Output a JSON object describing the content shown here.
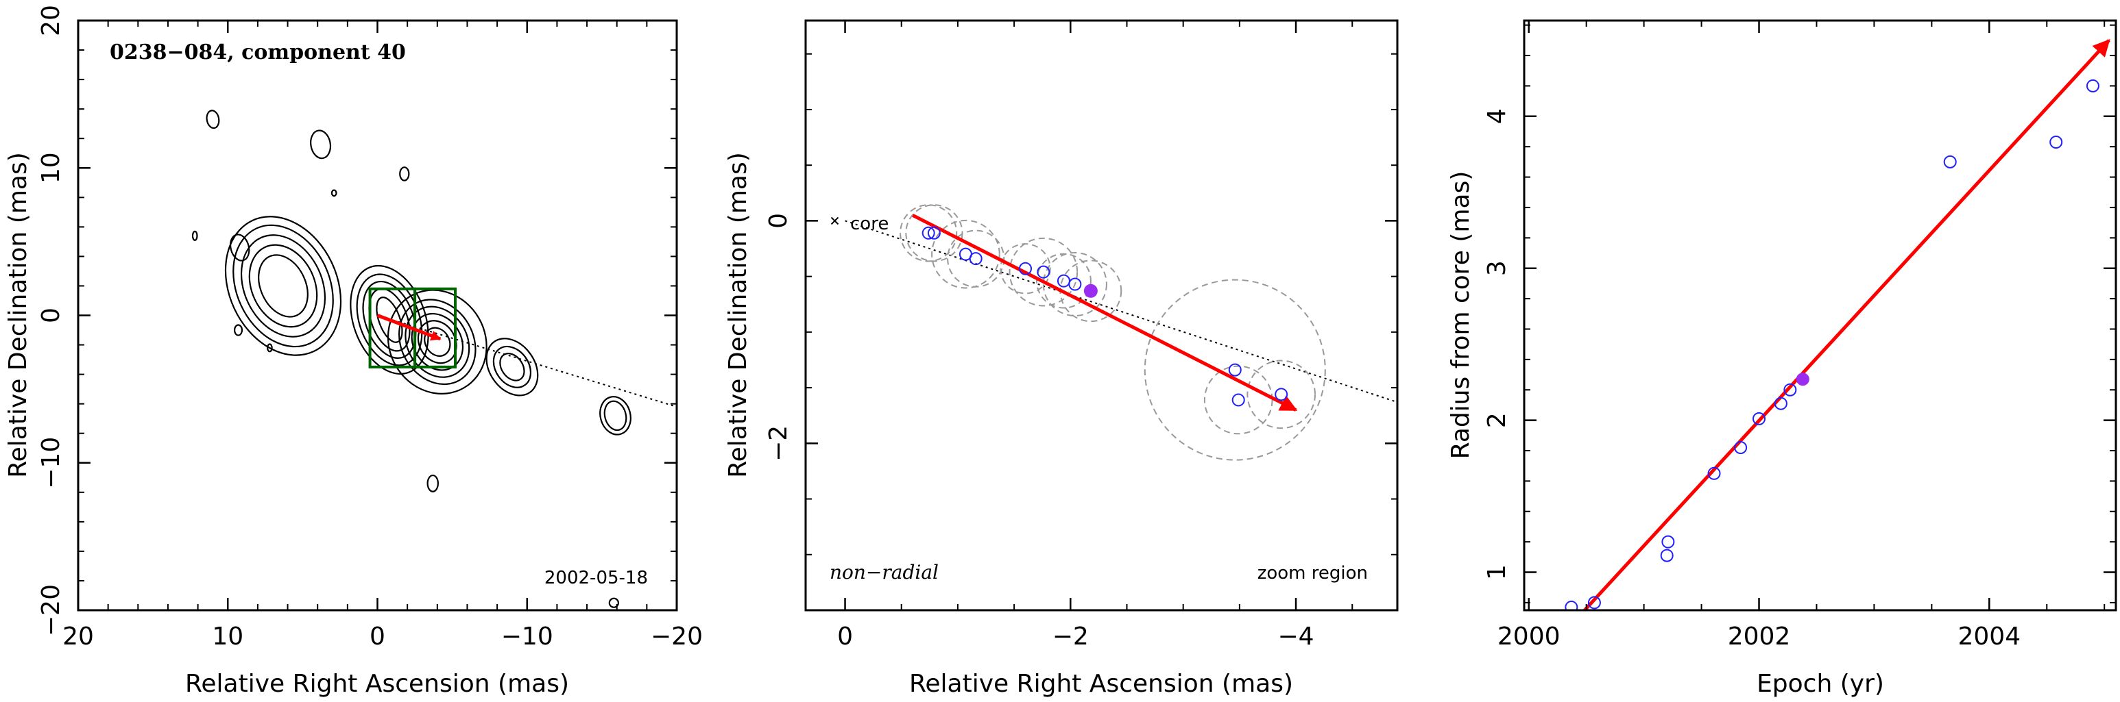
{
  "chart_data": [
    {
      "type": "contour",
      "title": "0238−084, component 40",
      "xlabel": "Relative Right Ascension (mas)",
      "ylabel": "Relative Declination (mas)",
      "xlim": [
        20,
        -20
      ],
      "ylim": [
        -20,
        20
      ],
      "xticks": [
        20,
        10,
        0,
        -10,
        -20
      ],
      "yticks": [
        -20,
        -10,
        0,
        10,
        20
      ],
      "xtick_labels": [
        "20",
        "10",
        "0",
        "−10",
        "−20"
      ],
      "ytick_labels": [
        "−20",
        "−10",
        "0",
        "10",
        "20"
      ],
      "date_label": "2002-05-18",
      "jet_axis": {
        "from": [
          0,
          0
        ],
        "to": [
          -20,
          -6.2
        ]
      },
      "motion_vector": {
        "from": [
          0,
          0
        ],
        "to": [
          -4.2,
          -1.6
        ]
      },
      "zoom_boxes": [
        {
          "x1": 0.5,
          "x2": -2.5,
          "y1": -3.5,
          "y2": 1.8
        },
        {
          "x1": -2.5,
          "x2": -5.2,
          "y1": -3.5,
          "y2": 1.8
        }
      ],
      "contour_groups": [
        {
          "x": 6.3,
          "y": 2.0,
          "rx": [
            1.5,
            2.1,
            2.6,
            3.1,
            3.6
          ],
          "ry": [
            2.2,
            2.9,
            3.6,
            4.3,
            4.9
          ],
          "angle": 25
        },
        {
          "x": -0.8,
          "y": -0.3,
          "rx": [
            0.7,
            1.2,
            1.6,
            2.0,
            2.4
          ],
          "ry": [
            1.6,
            2.2,
            2.7,
            3.2,
            3.8
          ],
          "angle": 20
        },
        {
          "x": -4.0,
          "y": -1.8,
          "rx": [
            0.8,
            1.2,
            1.6,
            2.0,
            2.4,
            3.2
          ],
          "ry": [
            1.0,
            1.5,
            2.0,
            2.5,
            3.0,
            3.6
          ],
          "angle": 30
        },
        {
          "x": -9.0,
          "y": -3.5,
          "rx": [
            0.7,
            1.1,
            1.5
          ],
          "ry": [
            1.0,
            1.5,
            2.1
          ],
          "angle": 35
        },
        {
          "x": -15.9,
          "y": -6.8,
          "rx": [
            0.7,
            1.0
          ],
          "ry": [
            1.0,
            1.3
          ],
          "angle": 15
        },
        {
          "x": 9.2,
          "y": 4.6,
          "rx": [
            0.6
          ],
          "ry": [
            0.9
          ],
          "angle": 15
        },
        {
          "x": 3.8,
          "y": 11.6,
          "rx": [
            0.65
          ],
          "ry": [
            0.95
          ],
          "angle": 10
        },
        {
          "x": -1.8,
          "y": 9.6,
          "rx": [
            0.3
          ],
          "ry": [
            0.45
          ],
          "angle": 0
        },
        {
          "x": -3.7,
          "y": -11.4,
          "rx": [
            0.35
          ],
          "ry": [
            0.55
          ],
          "angle": 0
        },
        {
          "x": 11.0,
          "y": 13.3,
          "rx": [
            0.4
          ],
          "ry": [
            0.6
          ],
          "angle": 10
        },
        {
          "x": 12.2,
          "y": 5.4,
          "rx": [
            0.15
          ],
          "ry": [
            0.3
          ],
          "angle": 0
        },
        {
          "x": 2.9,
          "y": 8.3,
          "rx": [
            0.15
          ],
          "ry": [
            0.2
          ],
          "angle": 0
        },
        {
          "x": 9.3,
          "y": -1.0,
          "rx": [
            0.25
          ],
          "ry": [
            0.35
          ],
          "angle": 0
        },
        {
          "x": 7.2,
          "y": -2.2,
          "rx": [
            0.15
          ],
          "ry": [
            0.25
          ],
          "angle": 0
        },
        {
          "x": -15.8,
          "y": -19.5,
          "rx": [
            0.3
          ],
          "ry": [
            0.3
          ],
          "angle": 0
        }
      ]
    },
    {
      "type": "scatter",
      "xlabel": "Relative Right Ascension (mas)",
      "ylabel": "Relative Declination (mas)",
      "xlim": [
        0.35,
        -4.9
      ],
      "ylim": [
        -3.5,
        1.8
      ],
      "xticks": [
        0,
        -2,
        -4
      ],
      "yticks": [
        -2,
        0
      ],
      "xtick_labels": [
        "0",
        "−2",
        "−4"
      ],
      "ytick_labels": [
        "−2",
        "0"
      ],
      "core_label": "core",
      "corner_label_left": "non−radial",
      "corner_label_right": "zoom region",
      "jet_axis": {
        "from": [
          0,
          0
        ],
        "to": [
          -4.9,
          -1.63
        ]
      },
      "motion_vector": {
        "from": [
          -0.6,
          0.05
        ],
        "to": [
          -4.0,
          -1.7
        ]
      },
      "points": [
        {
          "x": -0.74,
          "y": -0.11,
          "r": 0.25
        },
        {
          "x": -0.79,
          "y": -0.11,
          "r": 0.25
        },
        {
          "x": -1.07,
          "y": -0.3,
          "r": 0.3
        },
        {
          "x": -1.16,
          "y": -0.34,
          "r": 0.25
        },
        {
          "x": -1.6,
          "y": -0.43,
          "r": 0.22
        },
        {
          "x": -1.76,
          "y": -0.46,
          "r": 0.3
        },
        {
          "x": -1.94,
          "y": -0.54,
          "r": 0.24
        },
        {
          "x": -2.04,
          "y": -0.57,
          "r": 0.28
        },
        {
          "x": -3.46,
          "y": -1.34,
          "r": 0.8
        },
        {
          "x": -3.49,
          "y": -1.61,
          "r": 0.3
        },
        {
          "x": -3.87,
          "y": -1.56,
          "r": 0.3
        }
      ],
      "highlight_point": {
        "x": -2.18,
        "y": -0.63,
        "r": 0.27
      }
    },
    {
      "type": "scatter",
      "xlabel": "Epoch (yr)",
      "ylabel": "Radius from core (mas)",
      "xlim": [
        1999.96,
        2005.1
      ],
      "ylim": [
        0.75,
        4.63
      ],
      "xticks": [
        2000,
        2002,
        2004
      ],
      "yticks": [
        1,
        2,
        3,
        4
      ],
      "xtick_labels": [
        "2000",
        "2002",
        "2004"
      ],
      "ytick_labels": [
        "1",
        "2",
        "3",
        "4"
      ],
      "points": [
        {
          "x": 2000.37,
          "y": 0.77
        },
        {
          "x": 2000.57,
          "y": 0.8
        },
        {
          "x": 2001.2,
          "y": 1.11
        },
        {
          "x": 2001.21,
          "y": 1.2
        },
        {
          "x": 2001.61,
          "y": 1.65
        },
        {
          "x": 2001.84,
          "y": 1.82
        },
        {
          "x": 2002.0,
          "y": 2.01
        },
        {
          "x": 2002.19,
          "y": 2.11
        },
        {
          "x": 2002.27,
          "y": 2.2
        },
        {
          "x": 2003.66,
          "y": 3.7
        },
        {
          "x": 2004.58,
          "y": 3.83
        },
        {
          "x": 2004.9,
          "y": 4.2
        }
      ],
      "highlight_point": {
        "x": 2002.38,
        "y": 2.27
      },
      "fit_line": {
        "from": [
          2000.4,
          0.68
        ],
        "to": [
          2005.04,
          4.5
        ]
      }
    }
  ]
}
